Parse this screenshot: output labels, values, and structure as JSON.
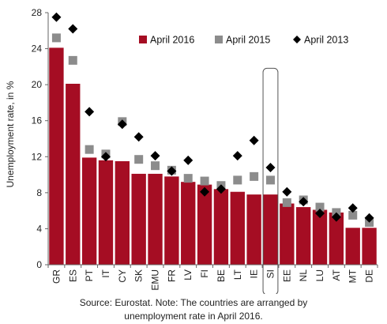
{
  "note": {
    "line1": "Source: Eurostat. Note: The countries are arranged by",
    "line2": "unemployment rate in April 2016."
  },
  "chart_data": {
    "type": "bar",
    "ylabel": "Unemployment rate, in %",
    "xlabel": "",
    "ylim": [
      0,
      28
    ],
    "yticks": [
      0,
      4,
      8,
      12,
      16,
      20,
      24,
      28
    ],
    "grid": false,
    "legend_position": "top-right",
    "highlighted_category": "SI",
    "categories": [
      "GR",
      "ES",
      "PT",
      "IT",
      "CY",
      "SK",
      "EMU",
      "FR",
      "LV",
      "FI",
      "BE",
      "LT",
      "IE",
      "SI",
      "EE",
      "NL",
      "LU",
      "AT",
      "MT",
      "DE"
    ],
    "series": [
      {
        "name": "April 2016",
        "kind": "bar",
        "color": "#a50d23",
        "values": [
          24.1,
          20.1,
          11.9,
          11.6,
          11.5,
          10.1,
          10.1,
          9.8,
          9.2,
          8.9,
          8.4,
          8.1,
          7.8,
          7.8,
          6.8,
          6.4,
          6.1,
          5.8,
          4.1,
          4.1
        ]
      },
      {
        "name": "April 2015",
        "kind": "square",
        "color": "#8c8c8c",
        "values": [
          25.2,
          22.7,
          12.8,
          12.3,
          15.9,
          11.7,
          11.0,
          10.5,
          9.6,
          9.3,
          8.8,
          9.4,
          9.8,
          9.4,
          6.9,
          7.2,
          6.4,
          5.8,
          5.5,
          4.7
        ]
      },
      {
        "name": "April 2013",
        "kind": "diamond",
        "color": "#000000",
        "values": [
          27.5,
          26.2,
          17.0,
          12.0,
          15.6,
          14.2,
          12.1,
          10.4,
          11.6,
          8.1,
          8.4,
          12.1,
          13.8,
          10.8,
          8.1,
          7.0,
          5.7,
          5.3,
          6.3,
          5.2
        ]
      }
    ]
  }
}
